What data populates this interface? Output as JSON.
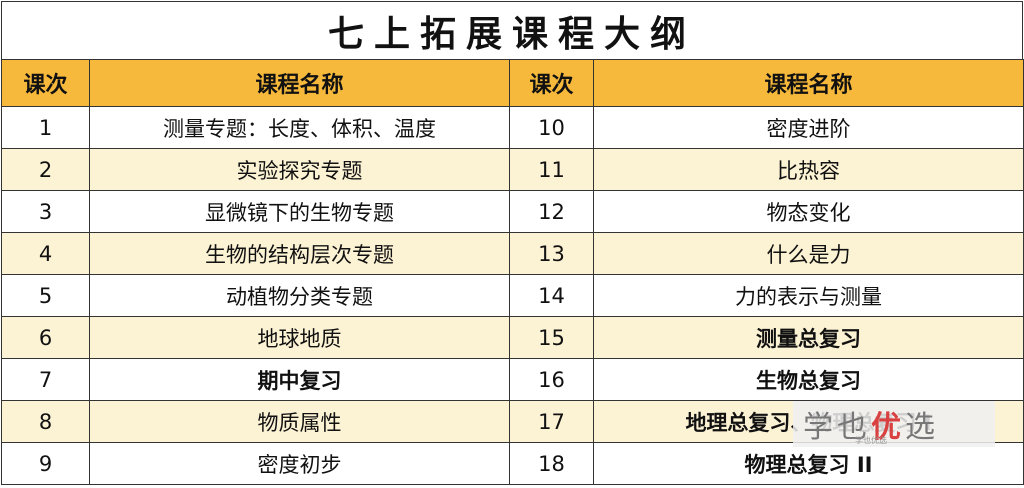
{
  "title": "七上拓展课程大纲",
  "headers": {
    "lesson": "课次",
    "course_name": "课程名称",
    "lesson2": "课次",
    "course_name2": "课程名称"
  },
  "rows": [
    {
      "n1": "1",
      "name1": "测量专题：长度、体积、温度",
      "n2": "10",
      "name2": "密度进阶"
    },
    {
      "n1": "2",
      "name1": "实验探究专题",
      "n2": "11",
      "name2": "比热容"
    },
    {
      "n1": "3",
      "name1": "显微镜下的生物专题",
      "n2": "12",
      "name2": "物态变化"
    },
    {
      "n1": "4",
      "name1": "生物的结构层次专题",
      "n2": "13",
      "name2": "什么是力"
    },
    {
      "n1": "5",
      "name1": "动植物分类专题",
      "n2": "14",
      "name2": "力的表示与测量"
    },
    {
      "n1": "6",
      "name1": "地球地质",
      "n2": "15",
      "name2": "测量总复习"
    },
    {
      "n1": "7",
      "name1": "期中复习",
      "n2": "16",
      "name2": "生物总复习"
    },
    {
      "n1": "8",
      "name1": "物质属性",
      "n2": "17",
      "name2": "地理总复习、物理总复习 I"
    },
    {
      "n1": "9",
      "name1": "密度初步",
      "n2": "18",
      "name2": "物理总复习 II"
    }
  ],
  "watermark": {
    "part1": "学",
    "part2": "也",
    "part3": "优",
    "part4": "选",
    "small": "学也优选"
  },
  "colors": {
    "header_bg": "#f6b93b",
    "alt_row_bg": "#fcf2d4",
    "border": "#333333"
  }
}
